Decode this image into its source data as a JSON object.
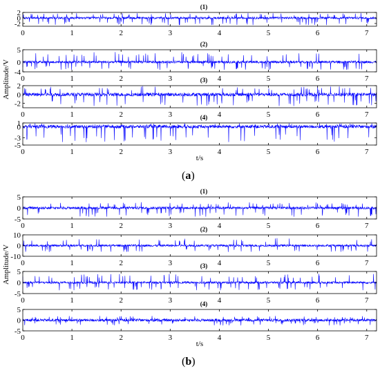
{
  "figures": [
    {
      "sublabel_open": "(",
      "sublabel": "a",
      "sublabel_close": ")",
      "ylabel": "Amplitude/V",
      "xlabel": "t/s"
    },
    {
      "sublabel_open": "(",
      "sublabel": "b",
      "sublabel_close": ")",
      "ylabel": "Amplitude/V",
      "xlabel": "t/s"
    }
  ],
  "chart_data": [
    {
      "type": "line",
      "figure": "a",
      "title": "(1)",
      "color": "#0000ff",
      "xlim": [
        0,
        7.2
      ],
      "ylim": [
        -3,
        2
      ],
      "x_ticks": [
        0,
        1,
        2,
        3,
        4,
        5,
        6,
        7
      ],
      "y_ticks": [
        {
          "value": 2,
          "label": "2"
        },
        {
          "value": 0,
          "label": "0"
        },
        {
          "value": -2,
          "label": "-2"
        }
      ],
      "signal": {
        "center": 0,
        "noise_amplitude": 0.55,
        "spike_up": 1.8,
        "spike_down": -2.6,
        "duration_s": 7.2
      }
    },
    {
      "type": "line",
      "figure": "a",
      "title": "(2)",
      "color": "#0000ff",
      "xlim": [
        0,
        7.2
      ],
      "ylim": [
        -4,
        5
      ],
      "x_ticks": [
        0,
        1,
        2,
        3,
        4,
        5,
        6,
        7
      ],
      "y_ticks": [
        {
          "value": 5,
          "label": "5"
        },
        {
          "value": 0,
          "label": "0"
        },
        {
          "value": -4,
          "label": "-4"
        }
      ],
      "signal": {
        "center": 0,
        "noise_amplitude": 0.7,
        "spike_up": 4.2,
        "spike_down": -3.2,
        "duration_s": 7.2
      }
    },
    {
      "type": "line",
      "figure": "a",
      "title": "(3)",
      "color": "#0000ff",
      "xlim": [
        0,
        7.2
      ],
      "ylim": [
        -3,
        2
      ],
      "x_ticks": [
        0,
        1,
        2,
        3,
        4,
        5,
        6,
        7
      ],
      "y_ticks": [
        {
          "value": 2,
          "label": "2"
        },
        {
          "value": 0,
          "label": "0"
        },
        {
          "value": -2,
          "label": "-2"
        }
      ],
      "signal": {
        "center": 0,
        "noise_amplitude": 0.55,
        "spike_up": 1.9,
        "spike_down": -2.6,
        "duration_s": 7.2
      }
    },
    {
      "type": "line",
      "figure": "a",
      "title": "(4)",
      "color": "#0000ff",
      "xlim": [
        0,
        7.2
      ],
      "ylim": [
        -5,
        1
      ],
      "x_ticks": [
        0,
        1,
        2,
        3,
        4,
        5,
        6,
        7
      ],
      "y_ticks": [
        {
          "value": 1,
          "label": "1"
        },
        {
          "value": 0,
          "label": "0"
        },
        {
          "value": -3,
          "label": "-3"
        },
        {
          "value": -5,
          "label": "-5"
        }
      ],
      "signal": {
        "center": 0,
        "noise_amplitude": 0.6,
        "spike_up": 0.9,
        "spike_down": -4.2,
        "duration_s": 7.2
      }
    },
    {
      "type": "line",
      "figure": "b",
      "title": "(1)",
      "color": "#0000ff",
      "xlim": [
        0,
        7.2
      ],
      "ylim": [
        -5,
        5
      ],
      "x_ticks": [
        0,
        1,
        2,
        3,
        4,
        5,
        6,
        7
      ],
      "y_ticks": [
        {
          "value": 5,
          "label": "5"
        },
        {
          "value": 0,
          "label": "0"
        },
        {
          "value": -5,
          "label": "-5"
        }
      ],
      "signal": {
        "center": 0,
        "noise_amplitude": 0.8,
        "spike_up": 2.6,
        "spike_down": -4.0,
        "duration_s": 7.2
      }
    },
    {
      "type": "line",
      "figure": "b",
      "title": "(2)",
      "color": "#0000ff",
      "xlim": [
        0,
        7.2
      ],
      "ylim": [
        -10,
        10
      ],
      "x_ticks": [
        0,
        1,
        2,
        3,
        4,
        5,
        6,
        7
      ],
      "y_ticks": [
        {
          "value": 10,
          "label": "10"
        },
        {
          "value": 0,
          "label": "0"
        },
        {
          "value": -10,
          "label": "-10"
        }
      ],
      "signal": {
        "center": 0,
        "noise_amplitude": 1.4,
        "spike_up": 7.0,
        "spike_down": -6.0,
        "duration_s": 7.2
      }
    },
    {
      "type": "line",
      "figure": "b",
      "title": "(3)",
      "color": "#0000ff",
      "xlim": [
        0,
        7.2
      ],
      "ylim": [
        -5,
        5
      ],
      "x_ticks": [
        0,
        1,
        2,
        3,
        4,
        5,
        6,
        7
      ],
      "y_ticks": [
        {
          "value": 5,
          "label": "5"
        },
        {
          "value": 0,
          "label": "0"
        },
        {
          "value": -5,
          "label": "-5"
        }
      ],
      "signal": {
        "center": 0,
        "noise_amplitude": 0.7,
        "spike_up": 4.0,
        "spike_down": -3.5,
        "duration_s": 7.2
      }
    },
    {
      "type": "line",
      "figure": "b",
      "title": "(4)",
      "color": "#0000ff",
      "xlim": [
        0,
        7.2
      ],
      "ylim": [
        -5,
        5
      ],
      "x_ticks": [
        0,
        1,
        2,
        3,
        4,
        5,
        6,
        7
      ],
      "y_ticks": [
        {
          "value": 5,
          "label": "5"
        },
        {
          "value": 0,
          "label": "0"
        },
        {
          "value": -5,
          "label": "-5"
        }
      ],
      "signal": {
        "center": 0,
        "noise_amplitude": 0.9,
        "spike_up": 2.0,
        "spike_down": -2.5,
        "duration_s": 7.2
      }
    }
  ]
}
